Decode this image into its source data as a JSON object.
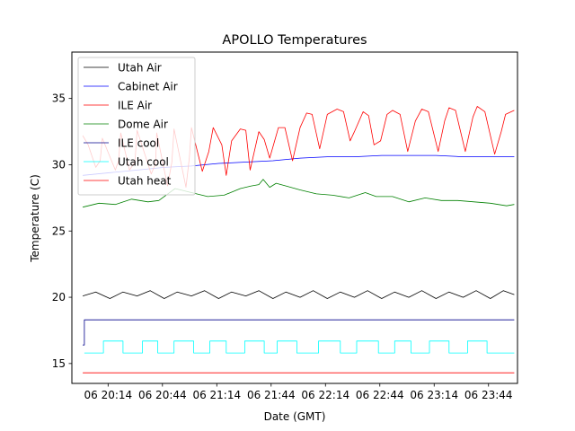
{
  "chart_data": {
    "type": "line",
    "title": "APOLLO Temperatures",
    "xlabel": "Date (GMT)",
    "ylabel": "Temperature (C)",
    "xlim": [
      19.9,
      24.0
    ],
    "ylim": [
      13.5,
      38.5
    ],
    "grid": false,
    "legend_position": "top-left",
    "x_units": "hours of day 06, GMT",
    "xtick_values": [
      20.2333,
      20.7333,
      21.2333,
      21.7333,
      22.2333,
      22.7333,
      23.2333,
      23.7333
    ],
    "xtick_labels": [
      "06 20:14",
      "06 20:44",
      "06 21:14",
      "06 21:44",
      "06 22:14",
      "06 22:44",
      "06 23:14",
      "06 23:44"
    ],
    "ytick_values": [
      15,
      20,
      25,
      30,
      35
    ],
    "ytick_labels": [
      "15",
      "20",
      "25",
      "30",
      "35"
    ],
    "series": [
      {
        "name": "Utah Air",
        "color": "#000000",
        "x": [
          20.0,
          20.12,
          20.25,
          20.37,
          20.5,
          20.62,
          20.75,
          20.87,
          21.0,
          21.12,
          21.25,
          21.37,
          21.5,
          21.62,
          21.75,
          21.87,
          22.0,
          22.12,
          22.25,
          22.37,
          22.5,
          22.62,
          22.75,
          22.87,
          23.0,
          23.12,
          23.25,
          23.37,
          23.5,
          23.62,
          23.75,
          23.87,
          23.97
        ],
        "values": [
          20.1,
          20.4,
          19.9,
          20.4,
          20.1,
          20.5,
          19.9,
          20.4,
          20.1,
          20.5,
          19.9,
          20.4,
          20.1,
          20.5,
          19.9,
          20.4,
          20.0,
          20.5,
          19.9,
          20.4,
          20.0,
          20.5,
          19.9,
          20.4,
          20.0,
          20.5,
          19.9,
          20.4,
          20.0,
          20.5,
          19.9,
          20.5,
          20.2
        ]
      },
      {
        "name": "Cabinet Air",
        "color": "#0000ff",
        "x": [
          20.0,
          20.25,
          20.5,
          20.75,
          21.0,
          21.25,
          21.5,
          21.75,
          22.0,
          22.25,
          22.5,
          22.75,
          23.0,
          23.25,
          23.5,
          23.75,
          23.97
        ],
        "values": [
          29.2,
          29.4,
          29.6,
          29.8,
          29.9,
          30.1,
          30.2,
          30.3,
          30.5,
          30.6,
          30.6,
          30.7,
          30.7,
          30.7,
          30.6,
          30.6,
          30.6
        ]
      },
      {
        "name": "ILE Air",
        "color": "#ff0000",
        "x": [
          20.0,
          20.05,
          20.12,
          20.16,
          20.18,
          20.3,
          20.33,
          20.35,
          20.43,
          20.48,
          20.5,
          20.63,
          20.67,
          20.68,
          20.78,
          20.82,
          20.84,
          20.95,
          20.98,
          21.0,
          21.1,
          21.16,
          21.2,
          21.28,
          21.32,
          21.37,
          21.45,
          21.5,
          21.54,
          21.62,
          21.67,
          21.72,
          21.8,
          21.86,
          21.93,
          22.0,
          22.06,
          22.11,
          22.18,
          22.25,
          22.34,
          22.4,
          22.46,
          22.5,
          22.58,
          22.63,
          22.68,
          22.74,
          22.8,
          22.85,
          22.92,
          22.99,
          23.06,
          23.12,
          23.18,
          23.27,
          23.33,
          23.37,
          23.43,
          23.52,
          23.59,
          23.63,
          23.7,
          23.79,
          23.85,
          23.89,
          23.97
        ],
        "values": [
          32.2,
          31.5,
          29.8,
          30.3,
          32.0,
          29.6,
          30.3,
          32.4,
          29.6,
          30.2,
          32.6,
          29.3,
          30.1,
          32.4,
          28.4,
          30.2,
          32.7,
          28.3,
          30.5,
          32.8,
          29.5,
          31.0,
          32.8,
          31.5,
          29.2,
          31.8,
          32.7,
          32.6,
          29.6,
          32.5,
          31.9,
          30.5,
          32.8,
          32.8,
          30.3,
          32.8,
          33.9,
          33.8,
          31.2,
          33.8,
          34.2,
          34.0,
          31.8,
          32.5,
          34.0,
          33.7,
          31.5,
          31.8,
          33.8,
          34.1,
          33.8,
          31.0,
          33.3,
          34.2,
          34.0,
          31.0,
          33.3,
          34.3,
          34.1,
          31.0,
          33.6,
          34.4,
          34.0,
          30.8,
          32.5,
          33.8,
          34.1
        ]
      },
      {
        "name": "Dome Air",
        "color": "#008000",
        "x": [
          20.0,
          20.15,
          20.3,
          20.45,
          20.6,
          20.7,
          20.85,
          21.0,
          21.15,
          21.3,
          21.45,
          21.55,
          21.62,
          21.66,
          21.72,
          21.78,
          21.87,
          22.0,
          22.15,
          22.3,
          22.45,
          22.6,
          22.7,
          22.85,
          23.0,
          23.15,
          23.3,
          23.45,
          23.6,
          23.75,
          23.9,
          23.97
        ],
        "values": [
          26.8,
          27.1,
          27.0,
          27.4,
          27.2,
          27.3,
          28.2,
          27.9,
          27.6,
          27.7,
          28.2,
          28.4,
          28.5,
          28.9,
          28.3,
          28.6,
          28.4,
          28.1,
          27.8,
          27.7,
          27.5,
          27.9,
          27.6,
          27.6,
          27.2,
          27.5,
          27.3,
          27.3,
          27.2,
          27.1,
          26.9,
          27.0
        ]
      },
      {
        "name": "ILE cool",
        "color": "#00008b",
        "x": [
          20.0,
          20.015,
          20.015,
          23.97
        ],
        "values": [
          16.4,
          16.4,
          18.3,
          18.3
        ]
      },
      {
        "name": "Utah cool",
        "color": "#00ffff",
        "x": [
          20.015,
          20.19,
          20.19,
          20.37,
          20.37,
          20.55,
          20.55,
          20.69,
          20.69,
          20.84,
          20.84,
          21.02,
          21.02,
          21.17,
          21.17,
          21.32,
          21.32,
          21.49,
          21.49,
          21.67,
          21.67,
          21.79,
          21.79,
          21.97,
          21.97,
          22.17,
          22.17,
          22.37,
          22.37,
          22.52,
          22.52,
          22.72,
          22.72,
          22.87,
          22.87,
          23.02,
          23.02,
          23.19,
          23.19,
          23.37,
          23.37,
          23.54,
          23.54,
          23.72,
          23.72,
          23.97
        ],
        "values": [
          15.8,
          15.8,
          16.7,
          16.7,
          15.8,
          15.8,
          16.7,
          16.7,
          15.8,
          15.8,
          16.7,
          16.7,
          15.8,
          15.8,
          16.7,
          16.7,
          15.8,
          15.8,
          16.7,
          16.7,
          15.8,
          15.8,
          16.7,
          16.7,
          15.8,
          15.8,
          16.7,
          16.7,
          15.8,
          15.8,
          16.7,
          16.7,
          15.8,
          15.8,
          16.7,
          16.7,
          15.8,
          15.8,
          16.7,
          16.7,
          15.8,
          15.8,
          16.7,
          16.7,
          15.8,
          15.8
        ]
      },
      {
        "name": "Utah heat",
        "color": "#ff0000",
        "x": [
          20.0,
          23.97
        ],
        "values": [
          14.3,
          14.3
        ]
      }
    ]
  }
}
